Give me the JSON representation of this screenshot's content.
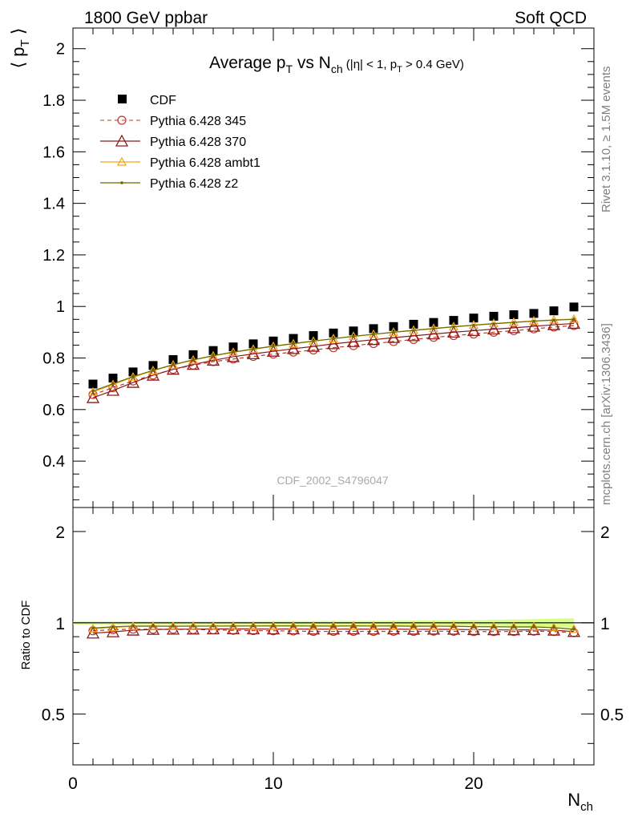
{
  "header": {
    "left": "1800 GeV ppbar",
    "right": "Soft QCD"
  },
  "side_text": {
    "rivet": "Rivet 3.1.10, ≥ 1.5M events",
    "mcplots": "mcplots.cern.ch [arXiv:1306.3436]"
  },
  "watermark": "CDF_2002_S4796047",
  "chart_data": [
    {
      "type": "scatter",
      "title": {
        "main": "Average p",
        "sub1": "T",
        "mid": " vs N",
        "sub2": "ch",
        "cond_a": " (|η| < 1, p",
        "cond_sub": "T",
        "cond_b": " > 0.4 GeV)"
      },
      "ylabel": {
        "a": "⟨ p",
        "sub": "T",
        "b": " ⟩"
      },
      "xlim": [
        0,
        26
      ],
      "ylim": [
        0.22,
        2.08
      ],
      "xticks": [
        0,
        10,
        20
      ],
      "yticks": [
        0.4,
        0.6,
        0.8,
        1,
        1.2,
        1.4,
        1.6,
        1.8,
        2
      ],
      "ytick_labels": [
        "0.4",
        "0.6",
        "0.8",
        "1",
        "1.2",
        "1.4",
        "1.6",
        "1.8",
        "2"
      ],
      "legend_position": "top-left",
      "x": [
        1,
        2,
        3,
        4,
        5,
        6,
        7,
        8,
        9,
        10,
        11,
        12,
        13,
        14,
        15,
        16,
        17,
        18,
        19,
        20,
        21,
        22,
        23,
        24,
        25
      ],
      "series": [
        {
          "name": "CDF",
          "color": "#000000",
          "marker": "square",
          "line": "none",
          "values": [
            0.699,
            0.722,
            0.746,
            0.771,
            0.794,
            0.813,
            0.829,
            0.843,
            0.855,
            0.866,
            0.876,
            0.887,
            0.897,
            0.905,
            0.914,
            0.922,
            0.931,
            0.938,
            0.946,
            0.955,
            0.962,
            0.968,
            0.973,
            0.983,
            0.998
          ]
        },
        {
          "name": "Pythia 6.428 345",
          "color": "#c0392b",
          "marker": "circle",
          "line": "dashed",
          "values": [
            0.658,
            0.685,
            0.711,
            0.734,
            0.756,
            0.772,
            0.786,
            0.796,
            0.806,
            0.815,
            0.823,
            0.831,
            0.84,
            0.848,
            0.856,
            0.864,
            0.872,
            0.88,
            0.887,
            0.893,
            0.9,
            0.906,
            0.913,
            0.92,
            0.926
          ]
        },
        {
          "name": "Pythia 6.428 370",
          "color": "#8b1a1a",
          "marker": "triangle",
          "line": "solid",
          "values": [
            0.646,
            0.674,
            0.705,
            0.733,
            0.756,
            0.775,
            0.791,
            0.805,
            0.816,
            0.826,
            0.836,
            0.845,
            0.855,
            0.863,
            0.871,
            0.879,
            0.886,
            0.893,
            0.9,
            0.906,
            0.912,
            0.917,
            0.923,
            0.929,
            0.934
          ]
        },
        {
          "name": "Pythia 6.428 ambt1",
          "color": "#f2a51a",
          "marker": "triangle-small",
          "line": "solid",
          "values": [
            0.668,
            0.697,
            0.726,
            0.751,
            0.773,
            0.792,
            0.808,
            0.822,
            0.834,
            0.845,
            0.855,
            0.865,
            0.875,
            0.884,
            0.892,
            0.9,
            0.908,
            0.915,
            0.922,
            0.928,
            0.934,
            0.939,
            0.944,
            0.948,
            0.951
          ]
        },
        {
          "name": "Pythia 6.428 z2",
          "color": "#6b6b00",
          "marker": "dot",
          "line": "solid",
          "values": [
            0.672,
            0.7,
            0.728,
            0.752,
            0.774,
            0.793,
            0.809,
            0.823,
            0.835,
            0.846,
            0.856,
            0.866,
            0.875,
            0.884,
            0.892,
            0.9,
            0.907,
            0.914,
            0.921,
            0.927,
            0.933,
            0.938,
            0.943,
            0.947,
            0.95
          ]
        }
      ]
    },
    {
      "type": "line",
      "ylabel": "Ratio to CDF",
      "xlabel": {
        "a": "N",
        "sub": "ch"
      },
      "xlim": [
        0,
        26
      ],
      "ylim": [
        0.34,
        2.4
      ],
      "yscale": "log",
      "xticks": [
        0,
        10,
        20
      ],
      "xtick_labels": [
        "0",
        "10",
        "20"
      ],
      "yticks": [
        0.5,
        1,
        2
      ],
      "ytick_labels": [
        "0.5",
        "1",
        "2"
      ],
      "band_color": "#ccff66",
      "band_halfwidth": [
        0.012,
        0.012,
        0.012,
        0.012,
        0.012,
        0.012,
        0.012,
        0.012,
        0.012,
        0.013,
        0.013,
        0.013,
        0.014,
        0.014,
        0.015,
        0.016,
        0.017,
        0.018,
        0.019,
        0.021,
        0.023,
        0.025,
        0.028,
        0.032,
        0.036
      ]
    }
  ]
}
